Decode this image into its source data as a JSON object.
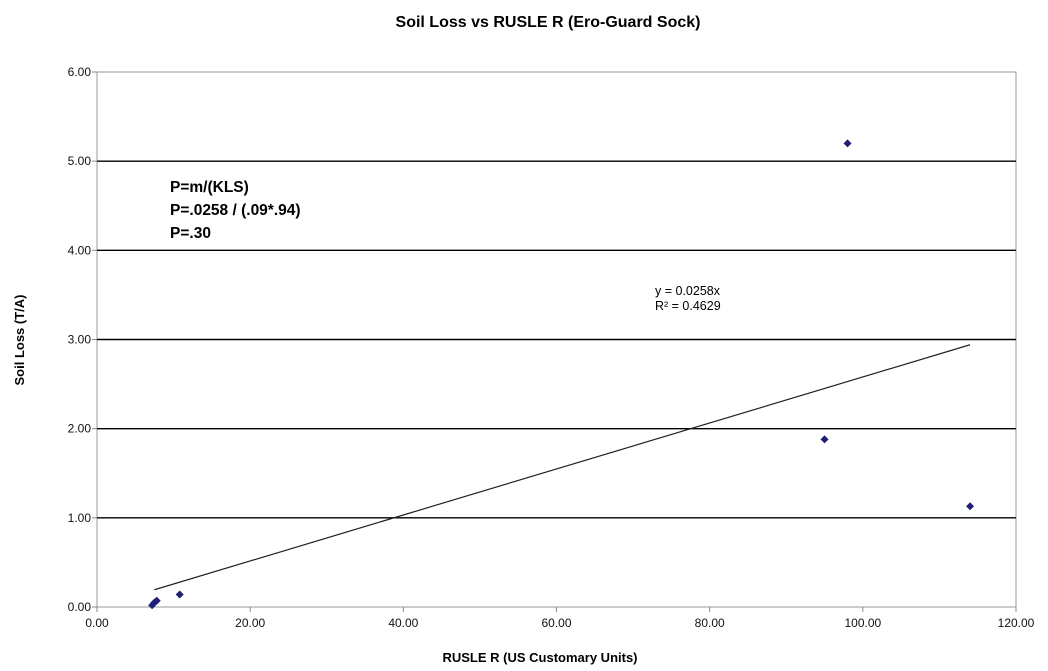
{
  "chart_data": {
    "type": "scatter",
    "title": "Soil Loss vs RUSLE R (Ero-Guard  Sock)",
    "xlabel": "RUSLE R (US Customary Units)",
    "ylabel": "Soil Loss (T/A)",
    "xlim": [
      0,
      120
    ],
    "ylim": [
      0,
      6
    ],
    "x_ticks": [
      "0.00",
      "20.00",
      "40.00",
      "60.00",
      "80.00",
      "100.00",
      "120.00"
    ],
    "y_ticks": [
      "0.00",
      "1.00",
      "2.00",
      "3.00",
      "4.00",
      "5.00",
      "6.00"
    ],
    "grid": "horizontal",
    "marker_color": "#1f1f7a",
    "series": [
      {
        "points": [
          {
            "x": 7.2,
            "y": 0.02
          },
          {
            "x": 7.5,
            "y": 0.05
          },
          {
            "x": 7.8,
            "y": 0.07
          },
          {
            "x": 10.8,
            "y": 0.14
          },
          {
            "x": 95.0,
            "y": 1.88
          },
          {
            "x": 98.0,
            "y": 5.2
          },
          {
            "x": 114.0,
            "y": 1.13
          }
        ]
      }
    ],
    "trendline": {
      "slope": 0.0258,
      "x_range": [
        7.5,
        114.0
      ],
      "equation": "y = 0.0258x",
      "r2": "R² = 0.4629"
    },
    "annotation_lines": [
      "P=m/(KLS)",
      "P=.0258 / (.09*.94)",
      "P=.30"
    ]
  }
}
